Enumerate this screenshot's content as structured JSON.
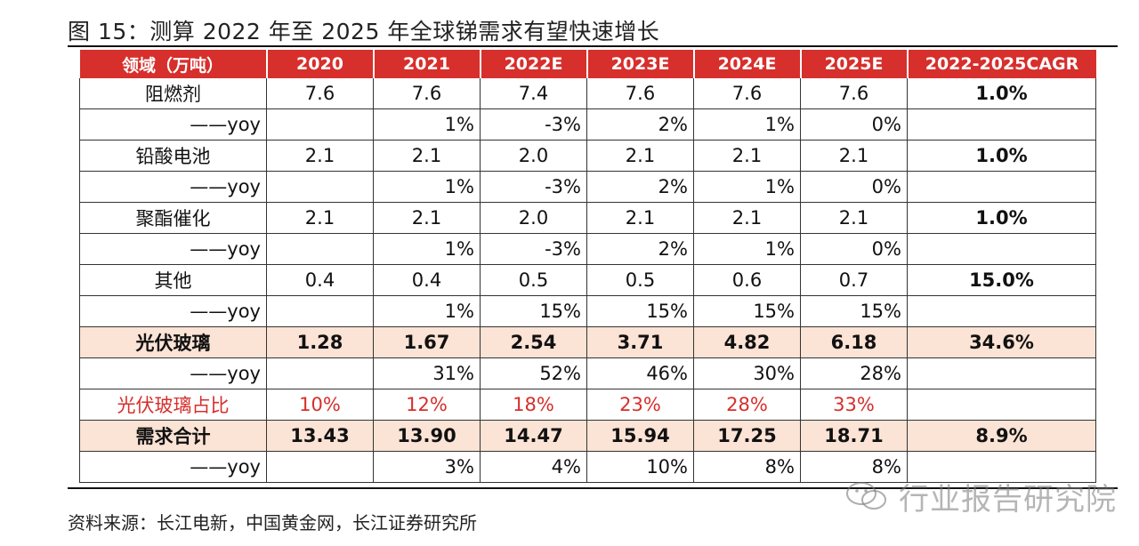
{
  "title": "图 15：测算 2022 年至 2025 年全球锑需求有望快速增长",
  "header": [
    "领域（万吨）",
    "2020",
    "2021",
    "2022E",
    "2023E",
    "2024E",
    "2025E",
    "2022-2025CAGR"
  ],
  "rows": [
    {
      "kind": "main",
      "label": "阻燃剂",
      "values": [
        "7.6",
        "7.6",
        "7.4",
        "7.6",
        "7.6",
        "7.6"
      ],
      "cagr": "1.0%"
    },
    {
      "kind": "yoy",
      "label": "——yoy",
      "values": [
        "",
        "1%",
        "-3%",
        "2%",
        "1%",
        "0%"
      ],
      "cagr": ""
    },
    {
      "kind": "main",
      "label": "铅酸电池",
      "values": [
        "2.1",
        "2.1",
        "2.0",
        "2.1",
        "2.1",
        "2.1"
      ],
      "cagr": "1.0%"
    },
    {
      "kind": "yoy",
      "label": "——yoy",
      "values": [
        "",
        "1%",
        "-3%",
        "2%",
        "1%",
        "0%"
      ],
      "cagr": ""
    },
    {
      "kind": "main",
      "label": "聚酯催化",
      "values": [
        "2.1",
        "2.1",
        "2.0",
        "2.1",
        "2.1",
        "2.1"
      ],
      "cagr": "1.0%"
    },
    {
      "kind": "yoy",
      "label": "——yoy",
      "values": [
        "",
        "1%",
        "-3%",
        "2%",
        "1%",
        "0%"
      ],
      "cagr": ""
    },
    {
      "kind": "main",
      "label": "其他",
      "values": [
        "0.4",
        "0.4",
        "0.5",
        "0.5",
        "0.6",
        "0.7"
      ],
      "cagr": "15.0%"
    },
    {
      "kind": "yoy",
      "label": "——yoy",
      "values": [
        "",
        "1%",
        "15%",
        "15%",
        "15%",
        "15%"
      ],
      "cagr": ""
    },
    {
      "kind": "highlight",
      "label": "光伏玻璃",
      "values": [
        "1.28",
        "1.67",
        "2.54",
        "3.71",
        "4.82",
        "6.18"
      ],
      "cagr": "34.6%"
    },
    {
      "kind": "yoy",
      "label": "——yoy",
      "values": [
        "",
        "31%",
        "52%",
        "46%",
        "30%",
        "28%"
      ],
      "cagr": ""
    },
    {
      "kind": "share",
      "label": "光伏玻璃占比",
      "values": [
        "10%",
        "12%",
        "18%",
        "23%",
        "28%",
        "33%"
      ],
      "cagr": ""
    },
    {
      "kind": "highlight",
      "label": "需求合计",
      "values": [
        "13.43",
        "13.90",
        "14.47",
        "15.94",
        "17.25",
        "18.71"
      ],
      "cagr": "8.9%"
    },
    {
      "kind": "yoy",
      "label": "——yoy",
      "values": [
        "",
        "3%",
        "4%",
        "10%",
        "8%",
        "8%"
      ],
      "cagr": ""
    }
  ],
  "source": "资料来源：长江电新，中国黄金网，长江证券研究所",
  "watermark": "行业报告研究院",
  "watermark_icon": "wechat-icon",
  "colors": {
    "header_bg": "#d62f2c",
    "highlight_bg": "#fbe3d5",
    "share_text": "#d62f2c"
  }
}
